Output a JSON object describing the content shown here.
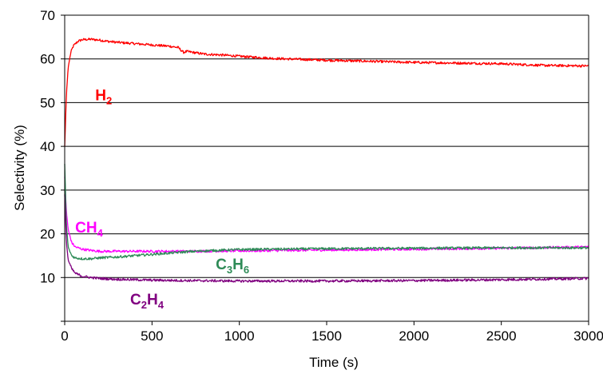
{
  "chart_data": {
    "type": "line",
    "xlabel": "Time (s)",
    "ylabel": "Selectivity (%)",
    "xlim": [
      0,
      3000
    ],
    "ylim": [
      0,
      70
    ],
    "x_ticks": [
      0,
      500,
      1000,
      1500,
      2000,
      2500,
      3000
    ],
    "y_ticks": [
      10,
      20,
      30,
      40,
      50,
      60,
      70
    ],
    "grid": "horizontal",
    "legend": "inline labels",
    "series": [
      {
        "name": "H2",
        "label_main": "H",
        "label_sub": "2",
        "color": "#ff0000",
        "label_at": [
          175,
          50.5
        ],
        "x": [
          0,
          10,
          20,
          35,
          50,
          75,
          100,
          150,
          200,
          250,
          300,
          400,
          500,
          600,
          650,
          680,
          700,
          800,
          900,
          1000,
          1200,
          1500,
          2000,
          2500,
          2750,
          3000
        ],
        "y": [
          40,
          52,
          58,
          61.5,
          63,
          64,
          64.4,
          64.5,
          64.3,
          64,
          63.8,
          63.5,
          63.2,
          62.9,
          62.6,
          61.5,
          61.7,
          61.1,
          60.9,
          60.6,
          60.1,
          59.7,
          59.2,
          58.9,
          58.5,
          58.4
        ]
      },
      {
        "name": "CH4",
        "label_main": "CH",
        "label_sub": "4",
        "color": "#ff00ff",
        "label_at": [
          60,
          20.3
        ],
        "x": [
          0,
          10,
          20,
          40,
          60,
          100,
          150,
          200,
          300,
          400,
          500,
          700,
          1000,
          1500,
          2000,
          2500,
          3000
        ],
        "y": [
          33,
          25,
          21,
          18,
          17,
          16.5,
          16.2,
          16,
          16,
          16,
          16,
          16,
          16.1,
          16.3,
          16.5,
          16.7,
          17
        ]
      },
      {
        "name": "C3H6",
        "label_main": "C",
        "label_sub": "3",
        "label_main2": "H",
        "label_sub2": "6",
        "color": "#2e8b57",
        "label_at": [
          865,
          11.9
        ],
        "x": [
          0,
          10,
          20,
          40,
          60,
          100,
          150,
          200,
          300,
          400,
          500,
          600,
          700,
          800,
          1000,
          1500,
          2000,
          2500,
          3000
        ],
        "y": [
          36,
          22,
          17,
          15,
          14.5,
          14.3,
          14.3,
          14.5,
          14.7,
          15,
          15.3,
          15.6,
          15.9,
          16.1,
          16.4,
          16.6,
          16.7,
          16.8,
          16.8
        ]
      },
      {
        "name": "C2H4",
        "label_main": "C",
        "label_sub": "2",
        "label_main2": "H",
        "label_sub2": "4",
        "color": "#800080",
        "label_at": [
          375,
          3.8
        ],
        "x": [
          0,
          10,
          20,
          40,
          60,
          100,
          150,
          200,
          300,
          400,
          500,
          700,
          1000,
          1500,
          2000,
          2500,
          3000
        ],
        "y": [
          29,
          18,
          14,
          12,
          11,
          10.3,
          10,
          9.8,
          9.6,
          9.5,
          9.4,
          9.3,
          9.2,
          9.2,
          9.3,
          9.5,
          9.8
        ]
      }
    ]
  }
}
